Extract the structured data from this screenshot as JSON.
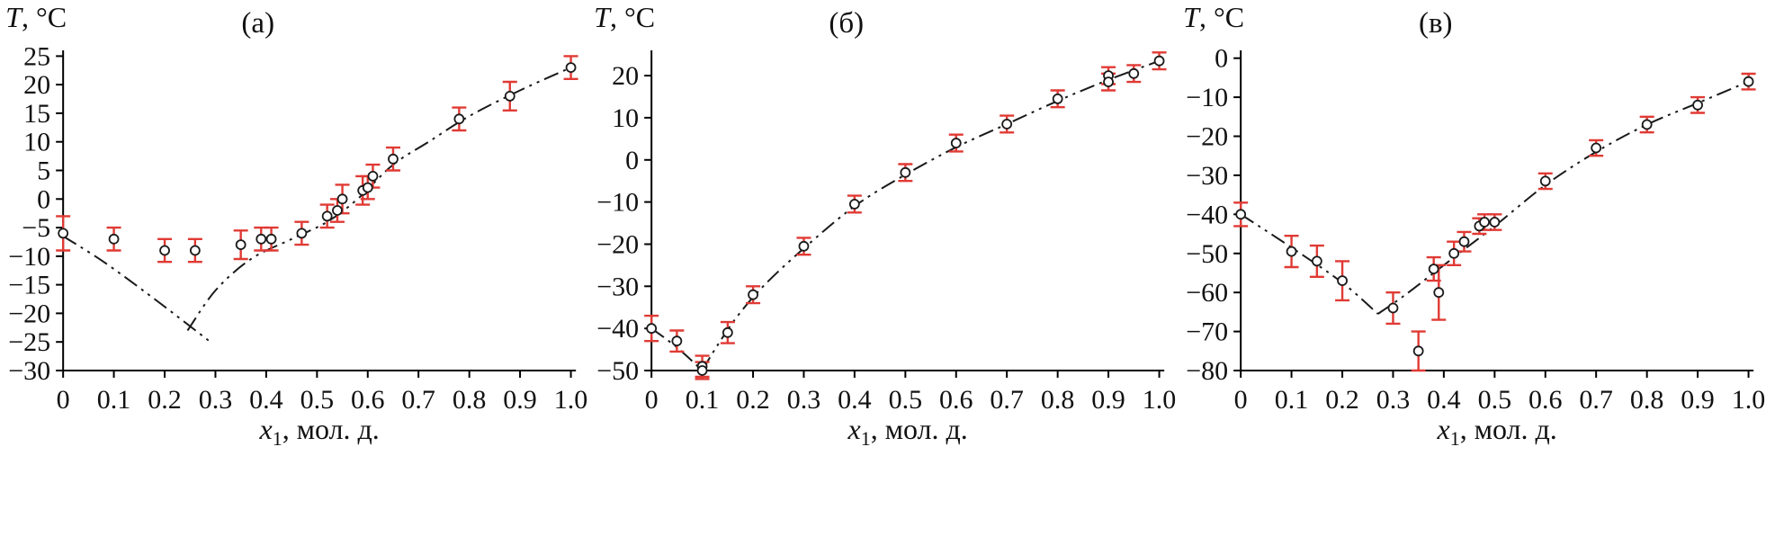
{
  "figure": {
    "background": "#ffffff"
  },
  "colors": {
    "axis": "#000000",
    "text": "#111111",
    "curve": "#1a1a1a",
    "error_bar": "#e03a34",
    "marker_fill": "#ffffff",
    "marker_stroke": "#1a1a1a"
  },
  "chart_data": [
    {
      "id": "a",
      "type": "scatter",
      "panel_label": "(а)",
      "ylabel": {
        "italic": "T",
        "rest": ", °C"
      },
      "xlabel": {
        "italic": "x",
        "sub": "1",
        "rest": ", мол. д."
      },
      "xlim": [
        0,
        1.01
      ],
      "ylim": [
        -30,
        26
      ],
      "xticks": [
        0,
        0.1,
        0.2,
        0.3,
        0.4,
        0.5,
        0.6,
        0.7,
        0.8,
        0.9,
        1.0
      ],
      "xtick_labels": [
        "0",
        "0.1",
        "0.2",
        "0.3",
        "0.4",
        "0.5",
        "0.6",
        "0.7",
        "0.8",
        "0.9",
        "1.0"
      ],
      "yticks": [
        25,
        20,
        15,
        10,
        5,
        0,
        -5,
        -10,
        -15,
        -20,
        -25,
        -30
      ],
      "ytick_labels": [
        "25",
        "20",
        "15",
        "10",
        "5",
        "0",
        "−5",
        "−10",
        "−15",
        "−20",
        "−25",
        "−30"
      ],
      "grid": false,
      "legend": null,
      "points": [
        {
          "x": 0.0,
          "y": -6,
          "err": 3
        },
        {
          "x": 0.1,
          "y": -7,
          "err": 2
        },
        {
          "x": 0.2,
          "y": -9,
          "err": 2
        },
        {
          "x": 0.26,
          "y": -9,
          "err": 2
        },
        {
          "x": 0.35,
          "y": -8,
          "err": 2.5
        },
        {
          "x": 0.39,
          "y": -7,
          "err": 2
        },
        {
          "x": 0.41,
          "y": -7,
          "err": 2
        },
        {
          "x": 0.47,
          "y": -6,
          "err": 2
        },
        {
          "x": 0.52,
          "y": -3,
          "err": 2
        },
        {
          "x": 0.54,
          "y": -2,
          "err": 2
        },
        {
          "x": 0.55,
          "y": 0,
          "err": 2.5
        },
        {
          "x": 0.59,
          "y": 1.5,
          "err": 2.5
        },
        {
          "x": 0.6,
          "y": 2,
          "err": 2
        },
        {
          "x": 0.61,
          "y": 4,
          "err": 2
        },
        {
          "x": 0.65,
          "y": 7,
          "err": 2
        },
        {
          "x": 0.78,
          "y": 14,
          "err": 2
        },
        {
          "x": 0.88,
          "y": 18,
          "err": 2.5
        },
        {
          "x": 1.0,
          "y": 23,
          "err": 2
        }
      ],
      "curves": [
        [
          [
            0,
            -6.5
          ],
          [
            0.08,
            -11
          ],
          [
            0.18,
            -17.5
          ],
          [
            0.29,
            -25
          ]
        ],
        [
          [
            0.245,
            -23
          ],
          [
            0.3,
            -16
          ],
          [
            0.37,
            -10.5
          ],
          [
            0.45,
            -7
          ],
          [
            0.52,
            -4
          ],
          [
            0.58,
            0
          ],
          [
            0.65,
            6
          ],
          [
            0.72,
            10
          ],
          [
            0.8,
            14.5
          ],
          [
            0.9,
            19
          ],
          [
            1.0,
            23
          ]
        ]
      ]
    },
    {
      "id": "b",
      "type": "scatter",
      "panel_label": "(б)",
      "ylabel": {
        "italic": "T",
        "rest": ", °C"
      },
      "xlabel": {
        "italic": "x",
        "sub": "1",
        "rest": ", мол. д."
      },
      "xlim": [
        0,
        1.01
      ],
      "ylim": [
        -50,
        26
      ],
      "xticks": [
        0,
        0.1,
        0.2,
        0.3,
        0.4,
        0.5,
        0.6,
        0.7,
        0.8,
        0.9,
        1.0
      ],
      "xtick_labels": [
        "0",
        "0.1",
        "0.2",
        "0.3",
        "0.4",
        "0.5",
        "0.6",
        "0.7",
        "0.8",
        "0.9",
        "1.0"
      ],
      "yticks": [
        20,
        10,
        0,
        -10,
        -20,
        -30,
        -40,
        -50
      ],
      "ytick_labels": [
        "20",
        "10",
        "0",
        "−10",
        "−20",
        "−30",
        "−40",
        "−50"
      ],
      "grid": false,
      "legend": null,
      "points": [
        {
          "x": 0.0,
          "y": -40,
          "err": 3
        },
        {
          "x": 0.05,
          "y": -43,
          "err": 2.5
        },
        {
          "x": 0.1,
          "y": -49,
          "err": 2.5
        },
        {
          "x": 0.1,
          "y": -50,
          "err": 2
        },
        {
          "x": 0.15,
          "y": -41,
          "err": 2.5
        },
        {
          "x": 0.2,
          "y": -32,
          "err": 2
        },
        {
          "x": 0.3,
          "y": -20.5,
          "err": 2
        },
        {
          "x": 0.4,
          "y": -10.5,
          "err": 2
        },
        {
          "x": 0.5,
          "y": -3,
          "err": 2
        },
        {
          "x": 0.6,
          "y": 4,
          "err": 2
        },
        {
          "x": 0.7,
          "y": 8.5,
          "err": 2
        },
        {
          "x": 0.8,
          "y": 14.5,
          "err": 2
        },
        {
          "x": 0.9,
          "y": 20,
          "err": 2
        },
        {
          "x": 0.9,
          "y": 18.5,
          "err": 2
        },
        {
          "x": 0.95,
          "y": 20.5,
          "err": 2
        },
        {
          "x": 1.0,
          "y": 23.5,
          "err": 2
        }
      ],
      "curves": [
        [
          [
            0,
            -40
          ],
          [
            0.05,
            -44.5
          ],
          [
            0.1,
            -50
          ]
        ],
        [
          [
            0.1,
            -50
          ],
          [
            0.13,
            -44
          ],
          [
            0.17,
            -37
          ],
          [
            0.22,
            -30
          ],
          [
            0.3,
            -21
          ],
          [
            0.4,
            -11
          ],
          [
            0.5,
            -3.5
          ],
          [
            0.6,
            3
          ],
          [
            0.7,
            8.5
          ],
          [
            0.8,
            14
          ],
          [
            0.9,
            19
          ],
          [
            1.0,
            23.5
          ]
        ]
      ]
    },
    {
      "id": "v",
      "type": "scatter",
      "panel_label": "(в)",
      "ylabel": {
        "italic": "T",
        "rest": ", °C"
      },
      "xlabel": {
        "italic": "x",
        "sub": "1",
        "rest": ", мол. д."
      },
      "xlim": [
        0,
        1.01
      ],
      "ylim": [
        -80,
        2
      ],
      "xticks": [
        0,
        0.1,
        0.2,
        0.3,
        0.4,
        0.5,
        0.6,
        0.7,
        0.8,
        0.9,
        1.0
      ],
      "xtick_labels": [
        "0",
        "0.1",
        "0.2",
        "0.3",
        "0.4",
        "0.5",
        "0.6",
        "0.7",
        "0.8",
        "0.9",
        "1.0"
      ],
      "yticks": [
        0,
        -10,
        -20,
        -30,
        -40,
        -50,
        -60,
        -70,
        -80
      ],
      "ytick_labels": [
        "0",
        "−10",
        "−20",
        "−30",
        "−40",
        "−50",
        "−60",
        "−70",
        "−80"
      ],
      "grid": false,
      "legend": null,
      "points": [
        {
          "x": 0.0,
          "y": -40,
          "err": 3
        },
        {
          "x": 0.1,
          "y": -49.5,
          "err": 4
        },
        {
          "x": 0.15,
          "y": -52,
          "err": 4
        },
        {
          "x": 0.2,
          "y": -57,
          "err": 5
        },
        {
          "x": 0.3,
          "y": -64,
          "err": 4
        },
        {
          "x": 0.35,
          "y": -75,
          "err": 5
        },
        {
          "x": 0.38,
          "y": -54,
          "err": 3
        },
        {
          "x": 0.39,
          "y": -60,
          "err": 7
        },
        {
          "x": 0.42,
          "y": -50,
          "err": 3
        },
        {
          "x": 0.44,
          "y": -47,
          "err": 2.5
        },
        {
          "x": 0.47,
          "y": -43,
          "err": 2
        },
        {
          "x": 0.48,
          "y": -42,
          "err": 2
        },
        {
          "x": 0.5,
          "y": -42,
          "err": 2
        },
        {
          "x": 0.6,
          "y": -31.5,
          "err": 2
        },
        {
          "x": 0.7,
          "y": -23,
          "err": 2
        },
        {
          "x": 0.8,
          "y": -17,
          "err": 2
        },
        {
          "x": 0.9,
          "y": -12,
          "err": 2
        },
        {
          "x": 1.0,
          "y": -6,
          "err": 2
        }
      ],
      "curves": [
        [
          [
            0,
            -40
          ],
          [
            0.1,
            -48.5
          ],
          [
            0.2,
            -57.5
          ],
          [
            0.27,
            -65.5
          ]
        ],
        [
          [
            0.27,
            -65.5
          ],
          [
            0.32,
            -61
          ],
          [
            0.38,
            -55
          ],
          [
            0.44,
            -49
          ],
          [
            0.5,
            -43
          ],
          [
            0.6,
            -32.5
          ],
          [
            0.7,
            -24
          ],
          [
            0.8,
            -17
          ],
          [
            0.9,
            -11.5
          ],
          [
            1.0,
            -6
          ]
        ]
      ]
    }
  ]
}
